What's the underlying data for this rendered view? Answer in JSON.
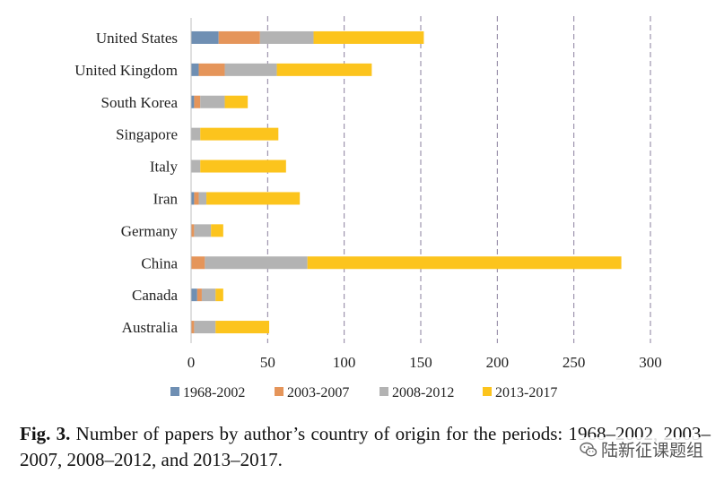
{
  "chart_data": {
    "type": "bar",
    "orientation": "horizontal",
    "stacked": true,
    "title": "",
    "xlabel": "",
    "ylabel": "",
    "categories": [
      "United States",
      "United Kingdom",
      "South Korea",
      "Singapore",
      "Italy",
      "Iran",
      "Germany",
      "China",
      "Canada",
      "Australia"
    ],
    "series": [
      {
        "name": "1968-2002",
        "color": "#6f8fb3",
        "values": [
          18,
          5,
          2,
          0,
          0,
          2,
          0,
          0,
          4,
          0
        ]
      },
      {
        "name": "2003-2007",
        "color": "#e5955a",
        "values": [
          27,
          17,
          4,
          0,
          0,
          3,
          2,
          9,
          3,
          2
        ]
      },
      {
        "name": "2008-2012",
        "color": "#b3b3b3",
        "values": [
          35,
          34,
          16,
          6,
          6,
          5,
          11,
          67,
          9,
          14
        ]
      },
      {
        "name": "2013-2017",
        "color": "#fcc41d",
        "values": [
          72,
          62,
          15,
          51,
          56,
          61,
          8,
          205,
          5,
          35
        ]
      }
    ],
    "xlim": [
      0,
      300
    ],
    "xticks": [
      0,
      50,
      100,
      150,
      200,
      250,
      300
    ],
    "grid": "vertical dashed",
    "legend": "bottom"
  },
  "caption": {
    "label": "Fig. 3.",
    "text": "Number of papers by author’s country of origin for the periods: 1968–2002, 2003–2007, 2008–2012, and 2013–2017."
  },
  "watermark": {
    "text": "陆新征课题组",
    "icon": "wechat-icon"
  }
}
